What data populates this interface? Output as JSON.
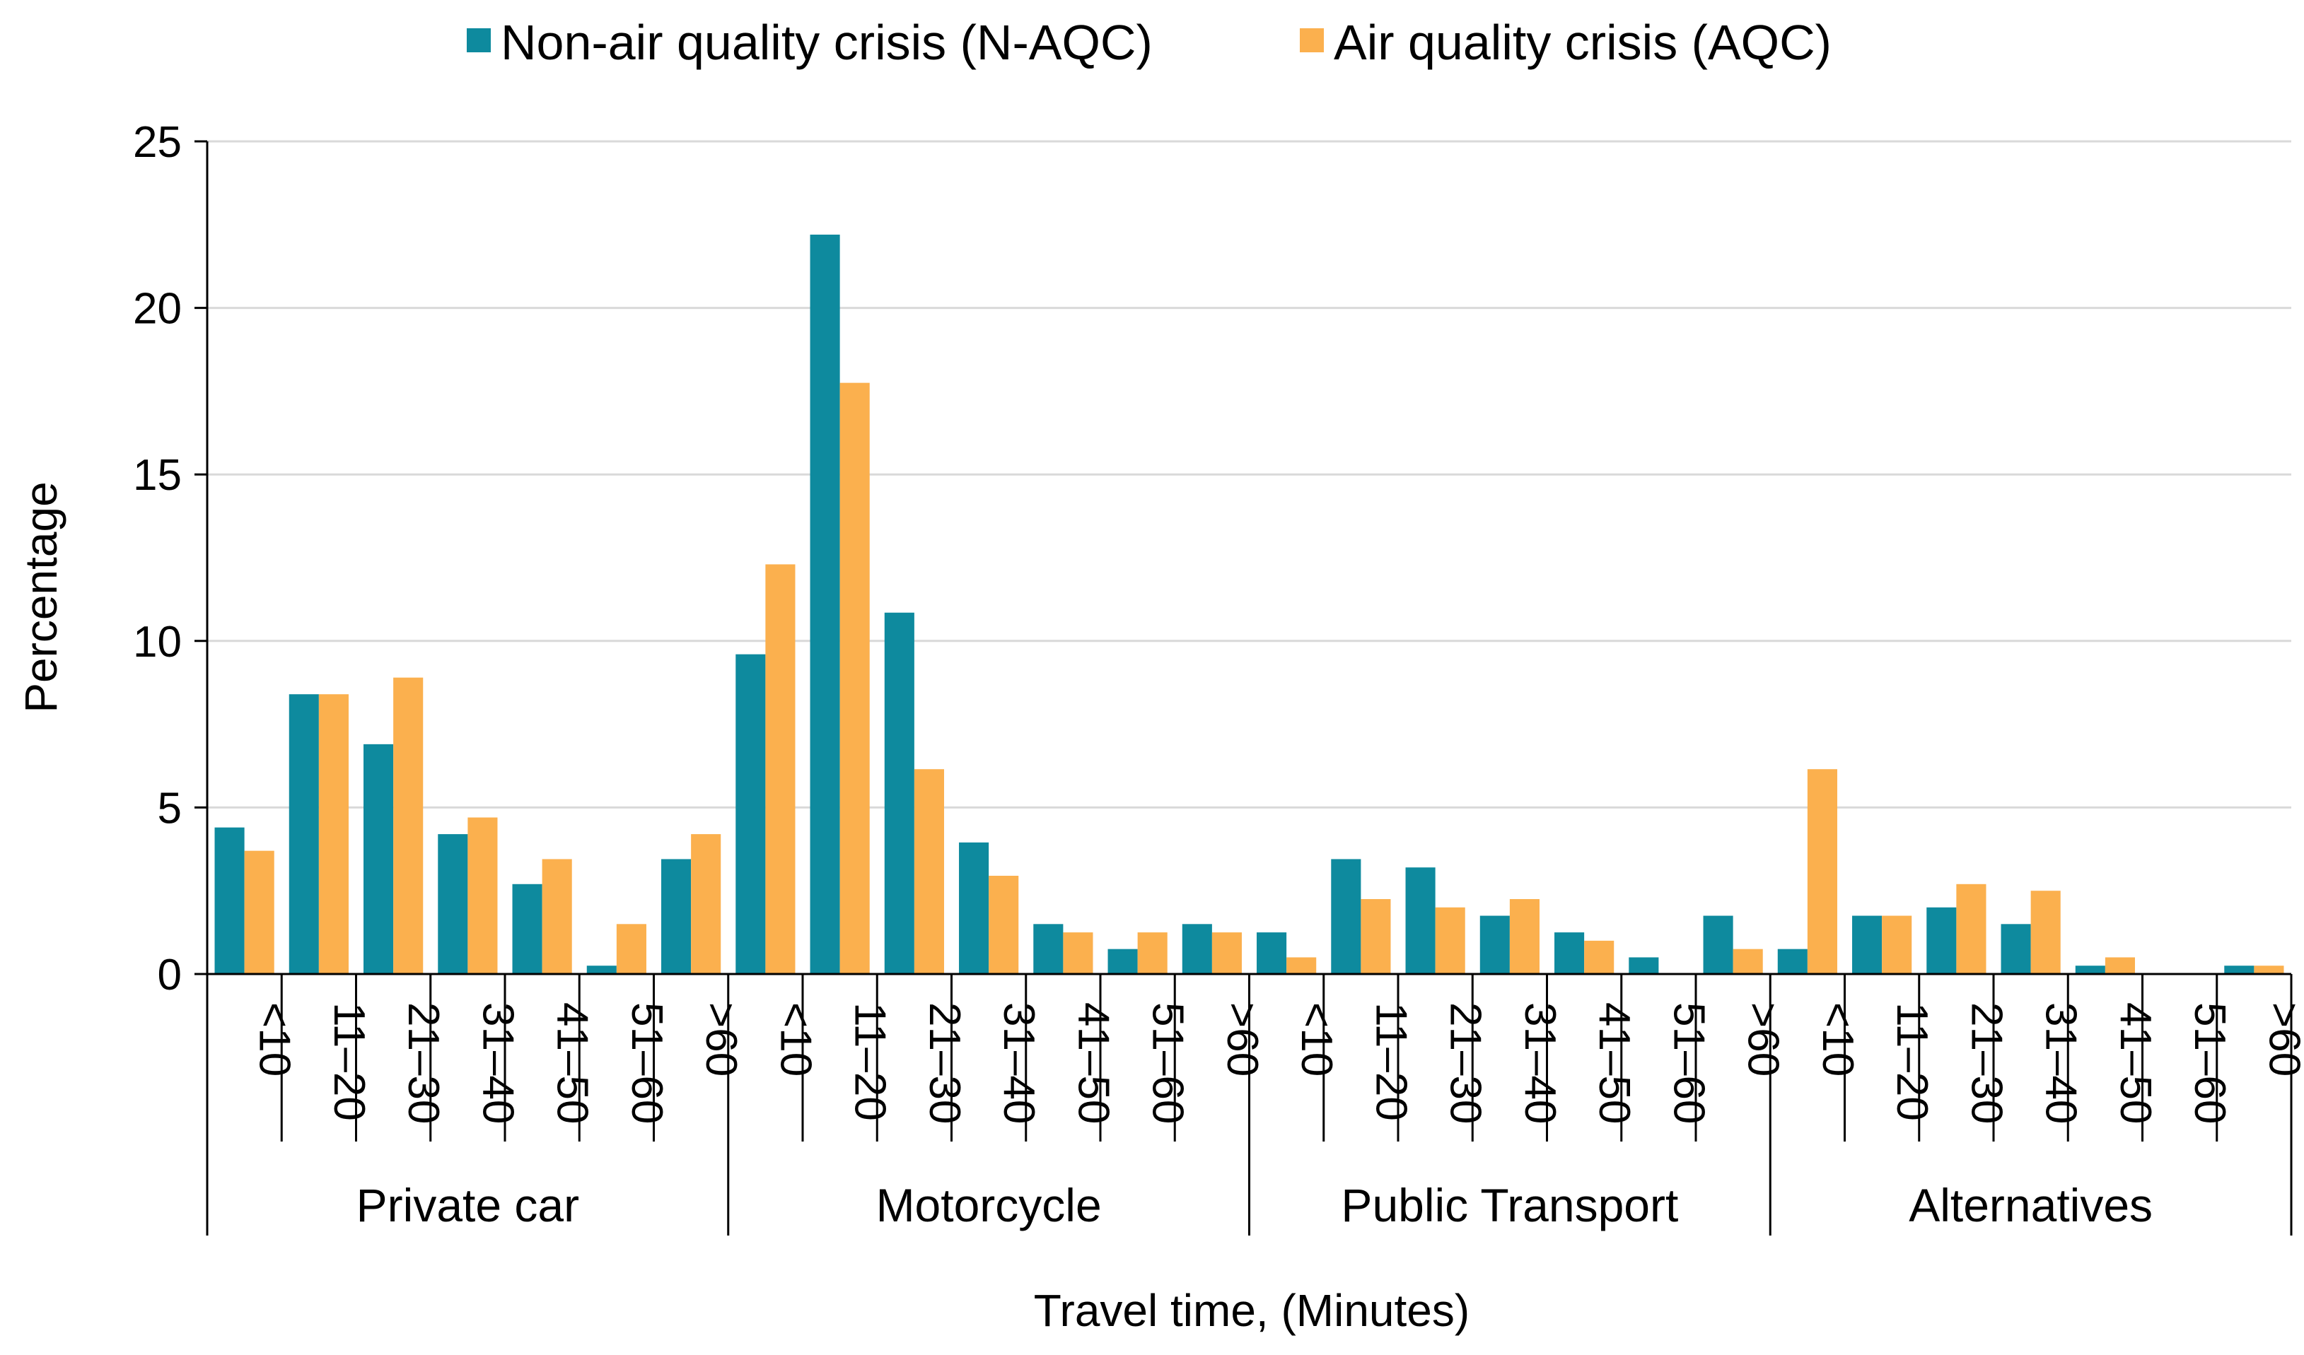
{
  "chart_data": {
    "type": "bar",
    "title": "",
    "xlabel": "Travel time, (Minutes)",
    "ylabel": "Percentage",
    "ylim": [
      0,
      25
    ],
    "yticks": [
      0,
      5,
      10,
      15,
      20,
      25
    ],
    "grid": true,
    "legend_position": "top",
    "groups": [
      {
        "name": "Private car",
        "categories": [
          "<10",
          "11–20",
          "21–30",
          "31–40",
          "41–50",
          "51–60",
          ">60"
        ]
      },
      {
        "name": "Motorcycle",
        "categories": [
          "<10",
          "11–20",
          "21–30",
          "31–40",
          "41–50",
          "51–60",
          ">60"
        ]
      },
      {
        "name": "Public Transport",
        "categories": [
          "<10",
          "11–20",
          "21–30",
          "31–40",
          "41–50",
          "51–60",
          ">60"
        ]
      },
      {
        "name": "Alternatives",
        "categories": [
          "<10",
          "11–20",
          "21–30",
          "31–40",
          "41–50",
          "51–60",
          ">60"
        ]
      }
    ],
    "series": [
      {
        "name": "Non-air quality crisis (N-AQC)",
        "color": "#0e8a9e",
        "values": [
          4.4,
          8.4,
          6.9,
          4.2,
          2.7,
          0.25,
          3.45,
          9.6,
          22.2,
          10.85,
          3.95,
          1.5,
          0.75,
          1.5,
          1.25,
          3.45,
          3.2,
          1.75,
          1.25,
          0.5,
          1.75,
          0.75,
          1.75,
          2.0,
          1.5,
          0.25,
          0,
          0.25
        ]
      },
      {
        "name": "Air quality crisis (AQC)",
        "color": "#fbb04e",
        "values": [
          3.7,
          8.4,
          8.9,
          4.7,
          3.45,
          1.5,
          4.2,
          12.3,
          17.75,
          6.15,
          2.95,
          1.25,
          1.25,
          1.25,
          0.5,
          2.25,
          2.0,
          2.25,
          1.0,
          0,
          0.75,
          6.15,
          1.75,
          2.7,
          2.5,
          0.5,
          0,
          0.25
        ]
      }
    ]
  }
}
